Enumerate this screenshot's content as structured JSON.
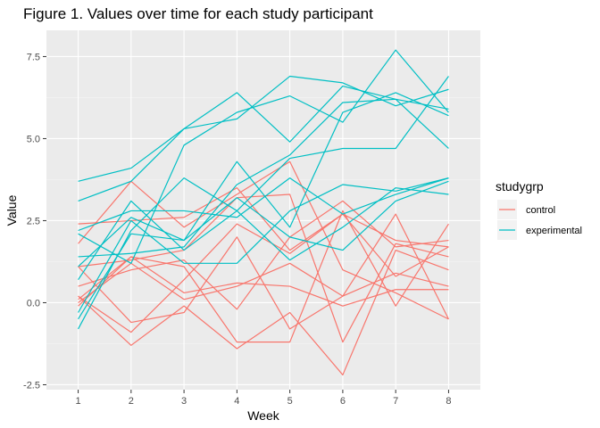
{
  "chart_data": {
    "type": "line",
    "title": "Figure 1. Values over time for each study participant",
    "xlabel": "Week",
    "ylabel": "Value",
    "x": [
      1,
      2,
      3,
      4,
      5,
      6,
      7,
      8
    ],
    "xlim": [
      0.4,
      8.6
    ],
    "ylim": [
      -2.65,
      8.3
    ],
    "xticks": [
      1,
      2,
      3,
      4,
      5,
      6,
      7,
      8
    ],
    "yticks": [
      -2.5,
      0.0,
      2.5,
      5.0,
      7.5
    ],
    "ytick_labels": [
      "-2.5",
      "0.0",
      "2.5",
      "5.0",
      "7.5"
    ],
    "grid": true,
    "legend": {
      "title": "studygrp",
      "placement": "right",
      "entries": [
        {
          "label": "control",
          "color": "#F8766D"
        },
        {
          "label": "experimental",
          "color": "#00BFC4"
        }
      ]
    },
    "series": [
      {
        "group": "control",
        "values": [
          0.2,
          -1.3,
          -0.1,
          -1.4,
          -0.3,
          -2.2,
          1.6,
          1.0
        ]
      },
      {
        "group": "control",
        "values": [
          1.8,
          3.7,
          2.3,
          3.3,
          4.3,
          1.0,
          0.3,
          -0.5
        ]
      },
      {
        "group": "control",
        "values": [
          1.1,
          -0.6,
          -0.3,
          2.0,
          -0.8,
          0.2,
          2.7,
          -0.5
        ]
      },
      {
        "group": "control",
        "values": [
          -0.1,
          1.4,
          1.1,
          -1.2,
          -1.2,
          2.8,
          -0.1,
          2.4
        ]
      },
      {
        "group": "control",
        "values": [
          0.1,
          1.4,
          0.3,
          0.6,
          0.5,
          -0.1,
          0.4,
          0.4
        ]
      },
      {
        "group": "control",
        "values": [
          0.0,
          1.2,
          0.1,
          0.5,
          1.2,
          0.2,
          0.9,
          0.5
        ]
      },
      {
        "group": "control",
        "values": [
          2.4,
          2.5,
          2.6,
          3.5,
          1.6,
          2.7,
          1.9,
          1.7
        ]
      },
      {
        "group": "control",
        "values": [
          0.2,
          -0.9,
          0.7,
          2.4,
          1.5,
          2.7,
          0.8,
          1.7
        ]
      },
      {
        "group": "control",
        "values": [
          0.5,
          1.0,
          1.3,
          -0.2,
          2.0,
          3.1,
          1.7,
          1.9
        ]
      },
      {
        "group": "control",
        "values": [
          1.1,
          1.3,
          1.6,
          3.2,
          3.3,
          -1.2,
          1.8,
          1.4
        ]
      },
      {
        "group": "experimental",
        "values": [
          3.7,
          4.1,
          5.3,
          6.4,
          4.9,
          6.6,
          6.2,
          5.9
        ]
      },
      {
        "group": "experimental",
        "values": [
          3.1,
          3.7,
          5.3,
          5.6,
          6.9,
          6.7,
          6.0,
          6.5
        ]
      },
      {
        "group": "experimental",
        "values": [
          2.1,
          1.2,
          4.8,
          5.8,
          6.3,
          5.5,
          7.7,
          5.8
        ]
      },
      {
        "group": "experimental",
        "values": [
          1.1,
          2.6,
          1.9,
          4.3,
          2.3,
          5.8,
          6.4,
          5.7
        ]
      },
      {
        "group": "experimental",
        "values": [
          1.4,
          1.5,
          1.7,
          3.6,
          4.5,
          6.1,
          6.2,
          4.7
        ]
      },
      {
        "group": "experimental",
        "values": [
          0.7,
          3.1,
          1.6,
          2.8,
          4.4,
          4.7,
          4.7,
          6.9
        ]
      },
      {
        "group": "experimental",
        "values": [
          2.2,
          2.8,
          2.8,
          2.6,
          3.8,
          2.7,
          3.3,
          3.8
        ]
      },
      {
        "group": "experimental",
        "values": [
          -0.8,
          2.2,
          3.8,
          2.8,
          1.3,
          2.3,
          3.5,
          3.3
        ]
      },
      {
        "group": "experimental",
        "values": [
          -0.3,
          2.5,
          1.2,
          1.2,
          2.8,
          3.6,
          3.4,
          3.8
        ]
      },
      {
        "group": "experimental",
        "values": [
          -0.5,
          2.1,
          1.9,
          3.2,
          2.0,
          1.6,
          3.1,
          3.7
        ]
      }
    ]
  }
}
